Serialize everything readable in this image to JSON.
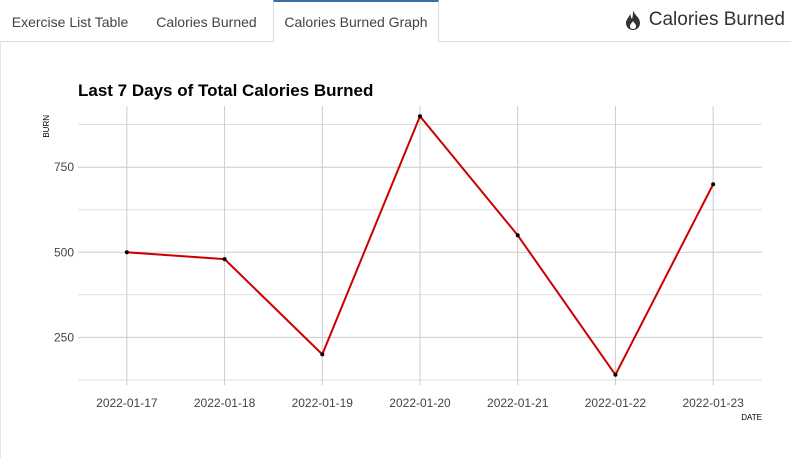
{
  "tabs": [
    {
      "label": "Exercise List Table",
      "active": false
    },
    {
      "label": "Calories Burned",
      "active": false
    },
    {
      "label": "Calories Burned Graph",
      "active": true
    }
  ],
  "brand": {
    "title": "Calories Burned",
    "icon": "fire-icon"
  },
  "colors": {
    "line": "#cc0000",
    "point": "#000000",
    "grid": "#cccccc",
    "tab_accent": "#3b6fa0"
  },
  "chart_data": {
    "type": "line",
    "title": "Last 7 Days of Total Calories Burned",
    "xlabel": "DATE",
    "ylabel": "BURN",
    "categories": [
      "2022-01-17",
      "2022-01-18",
      "2022-01-19",
      "2022-01-20",
      "2022-01-21",
      "2022-01-22",
      "2022-01-23"
    ],
    "values": [
      500,
      480,
      200,
      900,
      550,
      140,
      700
    ],
    "yticks": [
      250,
      500,
      750
    ],
    "ylim": [
      110,
      930
    ],
    "grid": true
  }
}
